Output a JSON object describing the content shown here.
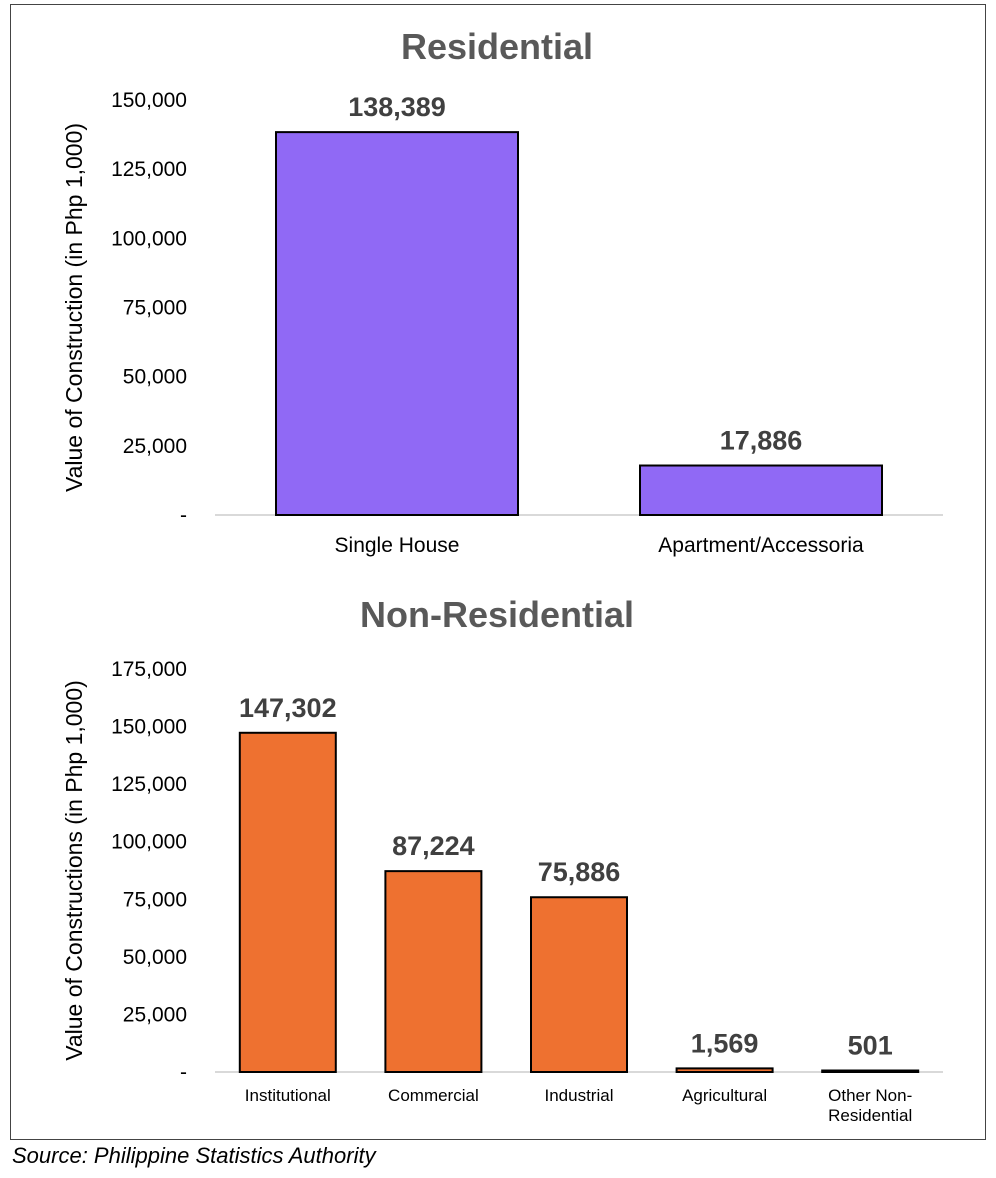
{
  "source": "Source: Philippine Statistics Authority",
  "chart_data": [
    {
      "type": "bar",
      "title": "Residential",
      "xlabel": "",
      "ylabel": "Value of Construction (in Php 1,000)",
      "ylim": [
        0,
        150000
      ],
      "ticks": [
        0,
        25000,
        50000,
        75000,
        100000,
        125000,
        150000
      ],
      "tick_labels": [
        "-",
        "25,000",
        "50,000",
        "75,000",
        "100,000",
        "125,000",
        "150,000"
      ],
      "categories": [
        "Single House",
        "Apartment/Accessoria"
      ],
      "values": [
        138389,
        17886
      ],
      "value_labels": [
        "138,389",
        "17,886"
      ],
      "grid": false,
      "color": "#9069f5"
    },
    {
      "type": "bar",
      "title": "Non-Residential",
      "xlabel": "",
      "ylabel": "Value of Constructions (in Php 1,000)",
      "ylim": [
        0,
        175000
      ],
      "ticks": [
        0,
        25000,
        50000,
        75000,
        100000,
        125000,
        150000,
        175000
      ],
      "tick_labels": [
        "-",
        "25,000",
        "50,000",
        "75,000",
        "100,000",
        "125,000",
        "150,000",
        "175,000"
      ],
      "categories": [
        "Institutional",
        "Commercial",
        "Industrial",
        "Agricultural",
        "Other Non-Residential"
      ],
      "category_lines": [
        [
          "Institutional"
        ],
        [
          "Commercial"
        ],
        [
          "Industrial"
        ],
        [
          "Agricultural"
        ],
        [
          "Other Non-",
          "Residential"
        ]
      ],
      "values": [
        147302,
        87224,
        75886,
        1569,
        501
      ],
      "value_labels": [
        "147,302",
        "87,224",
        "75,886",
        "1,569",
        "501"
      ],
      "grid": false,
      "color": "#ee7130"
    }
  ]
}
